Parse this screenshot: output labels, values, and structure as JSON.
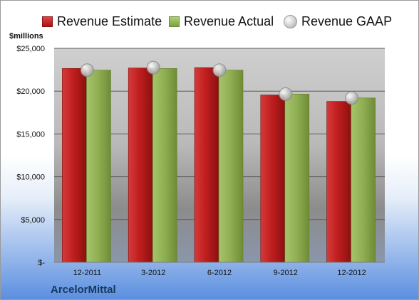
{
  "company": "ArcelorMittal",
  "unit_label": "$millions",
  "colors": {
    "estimate": "#c0202a",
    "actual": "#9bbb59",
    "gaap": "#c8c8c8"
  },
  "chart_data": {
    "type": "bar",
    "categories": [
      "12-2011",
      "3-2012",
      "6-2012",
      "9-2012",
      "12-2012"
    ],
    "series": [
      {
        "name": "Revenue Estimate",
        "kind": "bar",
        "values": [
          22650,
          22700,
          22750,
          19550,
          18800
        ]
      },
      {
        "name": "Revenue Actual",
        "kind": "bar",
        "values": [
          22450,
          22650,
          22450,
          19650,
          19200
        ]
      },
      {
        "name": "Revenue GAAP",
        "kind": "marker",
        "values": [
          22450,
          22750,
          22450,
          19650,
          19200
        ]
      }
    ],
    "yticks": [
      "$-",
      "$5,000",
      "$10,000",
      "$15,000",
      "$20,000",
      "$25,000"
    ],
    "ylim": [
      0,
      25000
    ],
    "grid": true,
    "legend": "top"
  }
}
